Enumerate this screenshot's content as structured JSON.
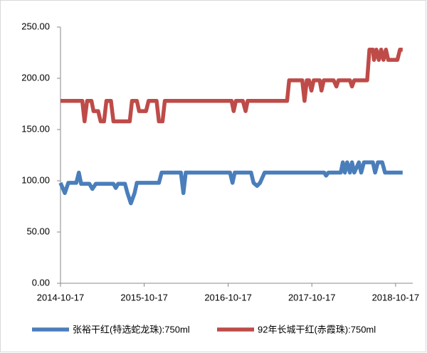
{
  "chart_data": {
    "type": "line",
    "xlim": [
      "2014-10-17",
      "2018-12-31"
    ],
    "xticks": [
      "2014-10-17",
      "2015-10-17",
      "2016-10-17",
      "2017-10-17",
      "2018-10-17"
    ],
    "ylim": [
      0,
      250
    ],
    "yticks": [
      {
        "value": 0,
        "label": "0.00"
      },
      {
        "value": 50,
        "label": "50.00"
      },
      {
        "value": 100,
        "label": "100.00"
      },
      {
        "value": 150,
        "label": "150.00"
      },
      {
        "value": 200,
        "label": "200.00"
      },
      {
        "value": 250,
        "label": "250.00"
      }
    ],
    "legend": "bottom",
    "series": [
      {
        "name": "张裕干红(特选蛇龙珠):750ml",
        "color": "#4a7ebb",
        "x": [
          "2014-10-17",
          "2014-11-05",
          "2014-11-20",
          "2014-12-25",
          "2015-01-05",
          "2015-01-15",
          "2015-02-20",
          "2015-03-05",
          "2015-03-20",
          "2015-06-05",
          "2015-06-15",
          "2015-06-25",
          "2015-07-25",
          "2015-08-05",
          "2015-08-20",
          "2015-09-05",
          "2015-09-15",
          "2015-12-20",
          "2016-01-01",
          "2016-03-25",
          "2016-04-05",
          "2016-04-15",
          "2016-10-25",
          "2016-11-05",
          "2016-11-15",
          "2017-01-25",
          "2017-02-05",
          "2017-02-20",
          "2017-03-05",
          "2017-03-25",
          "2017-12-10",
          "2017-12-18",
          "2017-12-28",
          "2018-02-20",
          "2018-03-01",
          "2018-03-10",
          "2018-03-20",
          "2018-04-01",
          "2018-04-10",
          "2018-04-20",
          "2018-05-10",
          "2018-05-20",
          "2018-06-01",
          "2018-07-10",
          "2018-07-20",
          "2018-08-01",
          "2018-08-20",
          "2018-09-01",
          "2018-11-17"
        ],
        "values": [
          98,
          88,
          98,
          98,
          108,
          97,
          97,
          92,
          97,
          97,
          93,
          97,
          97,
          88,
          78,
          88,
          98,
          98,
          108,
          108,
          88,
          108,
          108,
          98,
          108,
          108,
          98,
          95,
          98,
          108,
          108,
          105,
          108,
          108,
          118,
          108,
          118,
          108,
          118,
          108,
          118,
          108,
          118,
          118,
          108,
          118,
          118,
          108,
          108
        ]
      },
      {
        "name": "92年长城干红(赤霞珠):750ml",
        "color": "#be4b48",
        "x": [
          "2014-10-17",
          "2015-01-20",
          "2015-01-30",
          "2015-02-10",
          "2015-03-01",
          "2015-03-10",
          "2015-03-30",
          "2015-04-10",
          "2015-04-25",
          "2015-05-05",
          "2015-05-25",
          "2015-06-05",
          "2015-08-15",
          "2015-08-25",
          "2015-09-15",
          "2015-09-25",
          "2015-10-25",
          "2015-11-05",
          "2015-12-10",
          "2015-12-20",
          "2016-01-05",
          "2016-01-15",
          "2016-11-01",
          "2016-11-10",
          "2016-11-20",
          "2016-12-20",
          "2017-01-01",
          "2017-01-10",
          "2017-07-01",
          "2017-07-10",
          "2017-09-05",
          "2017-09-15",
          "2017-09-25",
          "2017-10-05",
          "2017-10-15",
          "2017-10-25",
          "2017-11-20",
          "2017-11-28",
          "2017-12-08",
          "2018-01-20",
          "2018-02-01",
          "2018-02-10",
          "2018-04-01",
          "2018-04-10",
          "2018-04-20",
          "2018-06-15",
          "2018-06-25",
          "2018-07-10",
          "2018-07-15",
          "2018-07-25",
          "2018-08-05",
          "2018-08-15",
          "2018-08-25",
          "2018-09-05",
          "2018-09-15",
          "2018-10-25",
          "2018-11-05",
          "2018-11-17"
        ],
        "values": [
          178,
          178,
          158,
          178,
          178,
          168,
          168,
          158,
          158,
          178,
          178,
          158,
          158,
          178,
          178,
          168,
          168,
          178,
          178,
          158,
          158,
          178,
          178,
          168,
          178,
          178,
          168,
          178,
          178,
          198,
          198,
          178,
          198,
          198,
          188,
          198,
          198,
          188,
          198,
          198,
          192,
          198,
          198,
          192,
          198,
          198,
          228,
          228,
          218,
          228,
          218,
          228,
          218,
          228,
          218,
          218,
          228,
          228
        ]
      }
    ]
  }
}
